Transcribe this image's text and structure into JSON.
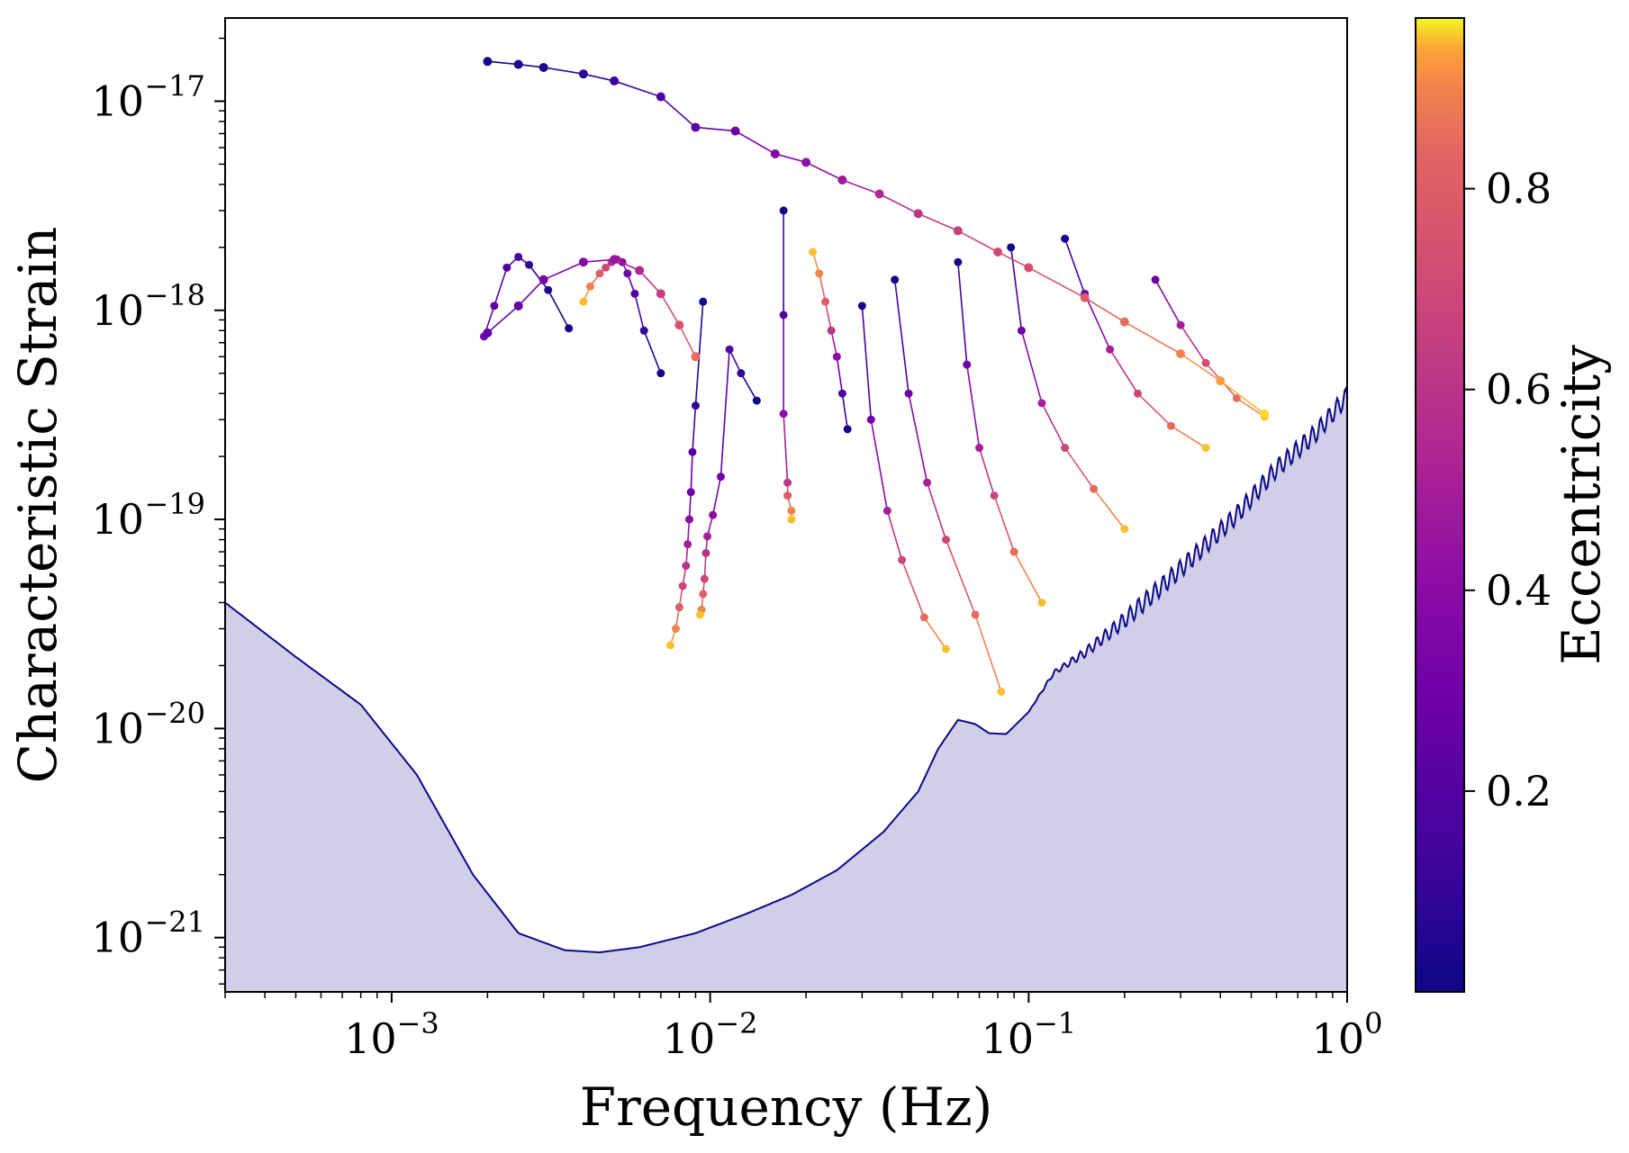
{
  "chart_data": {
    "type": "scatter",
    "xlabel": "Frequency (Hz)",
    "ylabel": "Characteristic Strain",
    "xscale": "log",
    "yscale": "log",
    "xlim": [
      0.0003,
      1.0
    ],
    "ylim": [
      5.5e-22,
      2.5e-17
    ],
    "x_ticks": [
      {
        "base": "10",
        "exp": "−3",
        "value": 0.001
      },
      {
        "base": "10",
        "exp": "−2",
        "value": 0.01
      },
      {
        "base": "10",
        "exp": "−1",
        "value": 0.1
      },
      {
        "base": "10",
        "exp": "0",
        "value": 1.0
      }
    ],
    "y_ticks": [
      {
        "base": "10",
        "exp": "−21",
        "value": 1e-21
      },
      {
        "base": "10",
        "exp": "−20",
        "value": 1e-20
      },
      {
        "base": "10",
        "exp": "−19",
        "value": 1e-19
      },
      {
        "base": "10",
        "exp": "−18",
        "value": 1e-18
      },
      {
        "base": "10",
        "exp": "−17",
        "value": 1e-17
      }
    ],
    "colorbar": {
      "label": "Eccentricity",
      "colormap": "plasma",
      "range": [
        0.0,
        0.97
      ],
      "ticks": [
        "0.2",
        "0.4",
        "0.6",
        "0.8"
      ],
      "tick_values": [
        0.2,
        0.4,
        0.6,
        0.8
      ]
    },
    "grid": false,
    "sensitivity_curve": {
      "color": "#0d0887",
      "fill": "#d0cfe7",
      "points": [
        [
          0.0003,
          4e-20
        ],
        [
          0.0005,
          2.2e-20
        ],
        [
          0.0008,
          1.3e-20
        ],
        [
          0.0012,
          6e-21
        ],
        [
          0.0018,
          2e-21
        ],
        [
          0.0025,
          1.05e-21
        ],
        [
          0.0035,
          8.7e-22
        ],
        [
          0.0045,
          8.5e-22
        ],
        [
          0.006,
          9e-22
        ],
        [
          0.009,
          1.05e-21
        ],
        [
          0.013,
          1.3e-21
        ],
        [
          0.018,
          1.6e-21
        ],
        [
          0.025,
          2.1e-21
        ],
        [
          0.035,
          3.2e-21
        ],
        [
          0.045,
          5e-21
        ],
        [
          0.052,
          8e-21
        ],
        [
          0.06,
          1.1e-20
        ],
        [
          0.068,
          1.05e-20
        ],
        [
          0.075,
          9.5e-21
        ],
        [
          0.085,
          9.4e-21
        ],
        [
          0.1,
          1.2e-20
        ],
        [
          0.12,
          1.85e-20
        ],
        [
          0.15,
          2.3e-20
        ],
        [
          0.2,
          3.3e-20
        ],
        [
          0.3,
          5.8e-20
        ],
        [
          0.45,
          1.05e-19
        ],
        [
          0.6,
          1.75e-19
        ],
        [
          0.8,
          2.6e-19
        ],
        [
          1.0,
          3.9e-19
        ]
      ],
      "ripple": {
        "start": 0.1,
        "period_log": 0.026,
        "amplitude_log": 0.045
      }
    },
    "tracks": {
      "description": "",
      "series": [
        {
          "ecc": [
            0.02,
            0.05,
            0.1,
            0.15,
            0.2,
            0.25,
            0.3
          ],
          "x": [
            0.0036,
            0.0031,
            0.0027,
            0.0025,
            0.0023,
            0.0021,
            0.00195
          ],
          "y": [
            8.2e-19,
            1.25e-18,
            1.65e-18,
            1.8e-18,
            1.6e-18,
            1.05e-18,
            7.5e-19
          ]
        },
        {
          "ecc": [
            0.02,
            0.1,
            0.2,
            0.3,
            0.4,
            0.5,
            0.6,
            0.7,
            0.8,
            0.9,
            0.95
          ],
          "x": [
            0.007,
            0.0062,
            0.0058,
            0.0055,
            0.0053,
            0.0051,
            0.0049,
            0.0047,
            0.0045,
            0.0042,
            0.004
          ],
          "y": [
            5e-19,
            8e-19,
            1.2e-18,
            1.5e-18,
            1.7e-18,
            1.75e-18,
            1.7e-18,
            1.6e-18,
            1.5e-18,
            1.3e-18,
            1.1e-18
          ]
        },
        {
          "ecc": [
            0.02,
            0.1,
            0.2,
            0.3,
            0.4,
            0.5,
            0.6,
            0.7,
            0.8,
            0.9,
            0.95
          ],
          "x": [
            0.0095,
            0.009,
            0.0088,
            0.0087,
            0.0086,
            0.0085,
            0.0084,
            0.0082,
            0.008,
            0.0078,
            0.0075
          ],
          "y": [
            1.1e-18,
            3.5e-19,
            2.1e-19,
            1.35e-19,
            1e-19,
            7.6e-20,
            6e-20,
            4.8e-20,
            3.8e-20,
            3e-20,
            2.5e-20
          ]
        },
        {
          "ecc": [
            0.02,
            0.1,
            0.2,
            0.3,
            0.4,
            0.5,
            0.6,
            0.7,
            0.8,
            0.9,
            0.95
          ],
          "x": [
            0.014,
            0.0125,
            0.0115,
            0.0108,
            0.0102,
            0.0098,
            0.0097,
            0.0096,
            0.0095,
            0.0094,
            0.0093
          ],
          "y": [
            3.7e-19,
            5e-19,
            6.5e-19,
            1.6e-19,
            1.05e-19,
            8.3e-20,
            6.9e-20,
            5.2e-20,
            4.4e-20,
            3.7e-20,
            3.5e-20
          ]
        },
        {
          "ecc": [
            0.02,
            0.2,
            0.4,
            0.6,
            0.8,
            0.9,
            0.95
          ],
          "x": [
            0.017,
            0.017,
            0.017,
            0.0175,
            0.0175,
            0.018,
            0.018
          ],
          "y": [
            3e-18,
            9.5e-19,
            3.2e-19,
            1.5e-19,
            1.3e-19,
            1.1e-19,
            1e-19
          ]
        },
        {
          "ecc": [
            0.02,
            0.2,
            0.4,
            0.6,
            0.8,
            0.9,
            0.95
          ],
          "x": [
            0.027,
            0.026,
            0.025,
            0.024,
            0.023,
            0.022,
            0.021
          ],
          "y": [
            2.7e-19,
            4e-19,
            6e-19,
            8e-19,
            1.1e-18,
            1.5e-18,
            1.9e-18
          ]
        },
        {
          "ecc": [
            0.02,
            0.3,
            0.5,
            0.7,
            0.85,
            0.95
          ],
          "x": [
            0.03,
            0.032,
            0.036,
            0.04,
            0.047,
            0.055
          ],
          "y": [
            1.05e-18,
            3e-19,
            1.1e-19,
            6.4e-20,
            3.4e-20,
            2.4e-20
          ]
        },
        {
          "ecc": [
            0.02,
            0.3,
            0.5,
            0.7,
            0.85,
            0.95
          ],
          "x": [
            0.038,
            0.042,
            0.048,
            0.055,
            0.068,
            0.082
          ],
          "y": [
            1.4e-18,
            4e-19,
            1.5e-19,
            8e-20,
            3.5e-20,
            1.5e-20
          ]
        },
        {
          "ecc": [
            0.02,
            0.3,
            0.5,
            0.7,
            0.85,
            0.95
          ],
          "x": [
            0.06,
            0.064,
            0.07,
            0.078,
            0.09,
            0.11
          ],
          "y": [
            1.7e-18,
            5.5e-19,
            2.2e-19,
            1.3e-19,
            7e-20,
            4e-20
          ]
        },
        {
          "ecc": [
            0.02,
            0.3,
            0.5,
            0.7,
            0.85,
            0.95
          ],
          "x": [
            0.088,
            0.095,
            0.11,
            0.13,
            0.16,
            0.2
          ],
          "y": [
            2e-18,
            8e-19,
            3.6e-19,
            2.2e-19,
            1.4e-19,
            9e-20
          ]
        },
        {
          "ecc": [
            0.02,
            0.3,
            0.5,
            0.7,
            0.85,
            0.95
          ],
          "x": [
            0.13,
            0.15,
            0.18,
            0.22,
            0.28,
            0.36
          ],
          "y": [
            2.2e-18,
            1.2e-18,
            6.5e-19,
            4e-19,
            2.8e-19,
            2.2e-19
          ]
        },
        {
          "ecc": [
            0.3,
            0.5,
            0.7,
            0.85,
            0.95
          ],
          "x": [
            0.25,
            0.3,
            0.36,
            0.45,
            0.55
          ],
          "y": [
            1.4e-18,
            8.5e-19,
            5.6e-19,
            3.8e-19,
            3.1e-19
          ]
        }
      ]
    },
    "envelope": {
      "upper": {
        "x": [
          0.002,
          0.0025,
          0.003,
          0.004,
          0.005,
          0.007,
          0.009,
          0.012,
          0.016,
          0.02,
          0.026,
          0.034,
          0.045,
          0.06,
          0.08,
          0.1,
          0.15,
          0.2,
          0.3,
          0.4,
          0.55
        ],
        "y": [
          1.55e-17,
          1.5e-17,
          1.45e-17,
          1.35e-17,
          1.25e-17,
          1.05e-17,
          7.5e-18,
          7.2e-18,
          5.6e-18,
          5.1e-18,
          4.2e-18,
          3.6e-18,
          2.9e-18,
          2.4e-18,
          1.9e-18,
          1.6e-18,
          1.15e-18,
          8.8e-19,
          6.2e-19,
          4.6e-19,
          3.2e-19
        ]
      },
      "upper_ecc": [
        0.02,
        0.03,
        0.05,
        0.08,
        0.12,
        0.18,
        0.24,
        0.3,
        0.36,
        0.42,
        0.48,
        0.54,
        0.6,
        0.66,
        0.7,
        0.74,
        0.8,
        0.85,
        0.9,
        0.93,
        0.96
      ],
      "lower": {
        "x": [
          0.002,
          0.0025,
          0.003,
          0.004,
          0.005,
          0.006,
          0.007,
          0.008,
          0.009
        ],
        "y": [
          7.8e-19,
          1.05e-18,
          1.4e-18,
          1.7e-18,
          1.75e-18,
          1.55e-18,
          1.2e-18,
          8.5e-19,
          6e-19
        ]
      },
      "lower_ecc": [
        0.25,
        0.28,
        0.32,
        0.38,
        0.45,
        0.55,
        0.65,
        0.75,
        0.85
      ]
    }
  }
}
